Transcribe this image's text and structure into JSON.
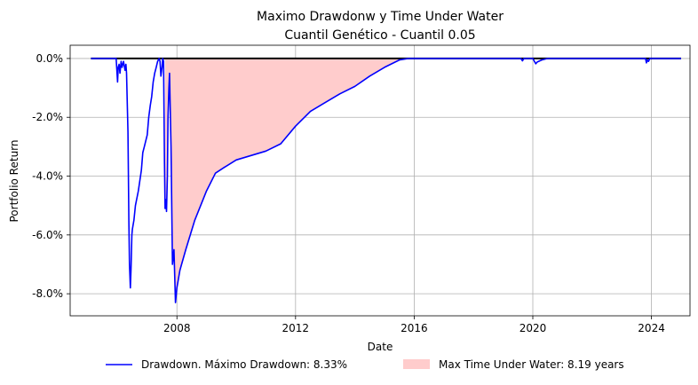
{
  "chart_data": {
    "type": "line",
    "title": "Maximo Drawdonw y Time Under Water",
    "subtitle": "Cuantil Genético - Cuantil 0.05",
    "xlabel": "Date",
    "ylabel": "Portfolio Return",
    "xlim": [
      2004.4,
      2025.3
    ],
    "ylim": [
      -8.75,
      0.45
    ],
    "x_ticks": [
      2008,
      2012,
      2016,
      2020,
      2024
    ],
    "x_tick_labels": [
      "2008",
      "2012",
      "2016",
      "2020",
      "2024"
    ],
    "y_ticks": [
      0,
      -2,
      -4,
      -6,
      -8
    ],
    "y_tick_labels": [
      "0.0%",
      "-2.0%",
      "-4.0%",
      "-6.0%",
      "-8.0%"
    ],
    "grid": true,
    "legend_position": "bottom-center",
    "series": [
      {
        "name": "Drawdown. Máximo Drawdown: 8.33%",
        "kind": "line",
        "color": "#0000ff",
        "x": [
          2005.1,
          2005.95,
          2006.0,
          2006.02,
          2006.05,
          2006.08,
          2006.12,
          2006.15,
          2006.2,
          2006.25,
          2006.28,
          2006.3,
          2006.35,
          2006.38,
          2006.4,
          2006.43,
          2006.45,
          2006.48,
          2006.5,
          2006.55,
          2006.6,
          2006.7,
          2006.8,
          2006.85,
          2006.9,
          2007.0,
          2007.05,
          2007.1,
          2007.15,
          2007.2,
          2007.25,
          2007.3,
          2007.35,
          2007.4,
          2007.43,
          2007.46,
          2007.5,
          2007.52,
          2007.55,
          2007.58,
          2007.6,
          2007.63,
          2007.65,
          2007.68,
          2007.7,
          2007.73,
          2007.75,
          2007.78,
          2007.8,
          2007.85,
          2007.9,
          2007.95,
          2008.0,
          2008.1,
          2008.3,
          2008.6,
          2009.0,
          2009.3,
          2009.6,
          2010.0,
          2010.5,
          2011.0,
          2011.5,
          2012.0,
          2012.5,
          2013.0,
          2013.5,
          2014.0,
          2014.5,
          2015.0,
          2015.5,
          2015.8,
          2019.6,
          2019.65,
          2019.7,
          2020.0,
          2020.1,
          2020.15,
          2020.3,
          2020.5,
          2023.8,
          2023.83,
          2023.86,
          2023.9,
          2023.95,
          2024.0,
          2025.0
        ],
        "y": [
          0.0,
          0.0,
          -0.8,
          -0.3,
          -0.2,
          -0.5,
          -0.1,
          -0.3,
          -0.1,
          -0.4,
          -0.2,
          -0.5,
          -2.5,
          -5.5,
          -7.0,
          -7.8,
          -7.2,
          -6.0,
          -5.8,
          -5.5,
          -5.0,
          -4.5,
          -3.8,
          -3.2,
          -3.0,
          -2.6,
          -2.0,
          -1.6,
          -1.3,
          -0.8,
          -0.5,
          -0.3,
          -0.1,
          0.0,
          -0.1,
          -0.6,
          -0.3,
          0.0,
          -0.1,
          -3.5,
          -5.1,
          -4.8,
          -5.2,
          -4.0,
          -2.0,
          -1.0,
          -0.5,
          -2.0,
          -3.0,
          -7.0,
          -6.5,
          -8.3,
          -7.8,
          -7.2,
          -6.5,
          -5.5,
          -4.5,
          -3.9,
          -3.7,
          -3.45,
          -3.3,
          -3.15,
          -2.9,
          -2.3,
          -1.8,
          -1.5,
          -1.2,
          -0.95,
          -0.6,
          -0.3,
          -0.05,
          0.0,
          0.0,
          -0.08,
          0.0,
          0.0,
          -0.18,
          -0.12,
          -0.05,
          0.0,
          0.0,
          -0.15,
          -0.05,
          -0.1,
          0.0,
          0.0,
          0.0
        ]
      },
      {
        "name": "Max Time Under Water: 8.19 years",
        "kind": "area",
        "color": "#ffcccc",
        "x_start": 2007.6,
        "x_end": 2015.79
      },
      {
        "kind": "hline",
        "color": "#000000",
        "y": 0,
        "x_start": 2005.1,
        "x_end": 2025.0
      }
    ]
  }
}
